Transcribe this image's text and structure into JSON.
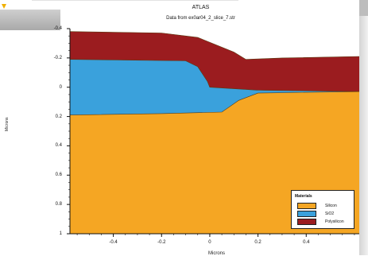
{
  "window": {
    "title": "ATLAS",
    "subtitle": "Data from ex0ar04_2_slice_7.str"
  },
  "chart_data": {
    "type": "area",
    "title": "ATLAS",
    "subtitle": "Data from ex0ar04_2_slice_7.str",
    "xlabel": "Microns",
    "ylabel": "Microns",
    "xlim": [
      -0.58,
      0.62
    ],
    "ylim": [
      -0.4,
      1.0
    ],
    "y_inverted": true,
    "x_ticks": [
      "-0.4",
      "-0.2",
      "0",
      "0.2",
      "0.4"
    ],
    "x_tick_values": [
      -0.4,
      -0.2,
      0,
      0.2,
      0.4
    ],
    "y_ticks": [
      "-0.4",
      "-0.2",
      "0",
      "0.2",
      "0.4",
      "0.6",
      "0.8",
      "1"
    ],
    "y_tick_values": [
      -0.4,
      -0.2,
      0,
      0.2,
      0.4,
      0.6,
      0.8,
      1.0
    ],
    "grid": false,
    "legend_position": "bottom-right",
    "legend_title": "Materials",
    "series": [
      {
        "name": "Silicon",
        "color": "#f5a623",
        "boundary": [
          [
            -0.58,
            0.19
          ],
          [
            -0.2,
            0.18
          ],
          [
            0.05,
            0.17
          ],
          [
            0.12,
            0.09
          ],
          [
            0.2,
            0.04
          ],
          [
            0.62,
            0.03
          ]
        ],
        "bottom": 1.0
      },
      {
        "name": "SiO2",
        "color": "#3aa1dc",
        "top": [
          [
            -0.58,
            -0.19
          ],
          [
            -0.1,
            -0.18
          ],
          [
            -0.05,
            -0.14
          ],
          [
            -0.01,
            -0.04
          ],
          [
            0.0,
            0.0
          ],
          [
            0.2,
            0.02
          ],
          [
            0.62,
            0.03
          ]
        ],
        "bottom_ref": "Silicon"
      },
      {
        "name": "Polysilicon",
        "color": "#9b1c1f",
        "top": [
          [
            -0.58,
            -0.38
          ],
          [
            -0.2,
            -0.37
          ],
          [
            -0.05,
            -0.34
          ],
          [
            0.1,
            -0.24
          ],
          [
            0.15,
            -0.19
          ],
          [
            0.3,
            -0.2
          ],
          [
            0.62,
            -0.21
          ]
        ],
        "bottom_ref": "SiO2"
      }
    ]
  }
}
